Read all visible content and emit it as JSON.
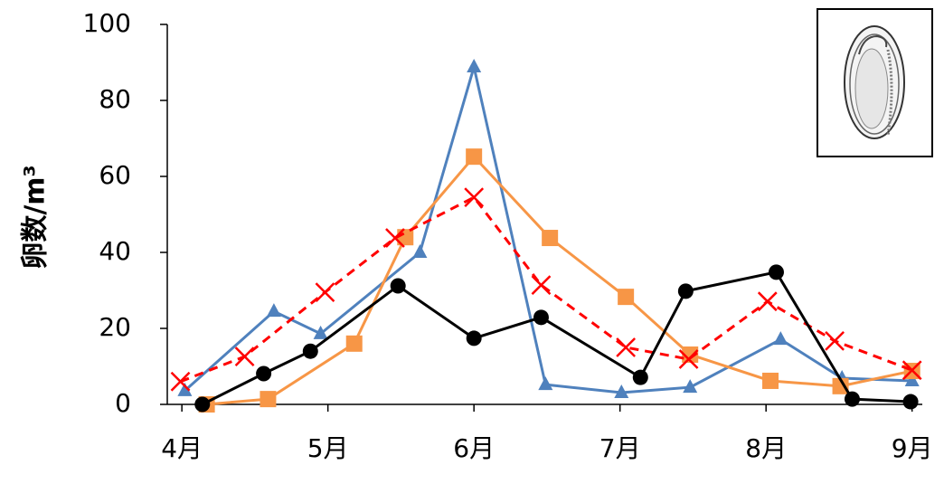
{
  "chart_data": {
    "type": "line",
    "ylabel": "卵数/m³",
    "xlim": [
      3.9,
      9.07
    ],
    "ylim": [
      0,
      100
    ],
    "xticks": [
      {
        "value": 4,
        "label": "4月"
      },
      {
        "value": 5,
        "label": "5月"
      },
      {
        "value": 6,
        "label": "6月"
      },
      {
        "value": 7,
        "label": "7月"
      },
      {
        "value": 8,
        "label": "8月"
      },
      {
        "value": 9,
        "label": "9月"
      }
    ],
    "yticks": [
      0,
      20,
      40,
      60,
      80,
      100
    ],
    "grid": false,
    "series": [
      {
        "color": "#4f81bd",
        "marker": "triangle",
        "dash": false,
        "x": [
          4.02,
          4.63,
          4.95,
          5.63,
          6.0,
          6.49,
          7.01,
          7.48,
          8.1,
          8.52,
          9.0
        ],
        "values": [
          3.6,
          24.5,
          18.6,
          40,
          88.8,
          5.2,
          3.1,
          4.5,
          17.1,
          6.9,
          6.2
        ]
      },
      {
        "color": "#f79646",
        "marker": "square",
        "dash": false,
        "x": [
          4.17,
          4.59,
          5.18,
          5.53,
          6.0,
          6.52,
          7.04,
          7.48,
          8.03,
          8.51,
          9.0
        ],
        "values": [
          0,
          1.4,
          16,
          44,
          65.2,
          43.8,
          28.3,
          13.1,
          6.2,
          4.8,
          8.8
        ]
      },
      {
        "color": "#ff0000",
        "marker": "cross",
        "dash": true,
        "x": [
          3.99,
          4.43,
          4.98,
          5.46,
          6.0,
          6.46,
          7.04,
          7.47,
          8.01,
          8.47,
          9.0
        ],
        "values": [
          6,
          12.6,
          29.5,
          43.8,
          54.5,
          31.4,
          15,
          11.9,
          27.1,
          16.7,
          9.0
        ]
      },
      {
        "color": "#000000",
        "marker": "circle",
        "dash": false,
        "x": [
          4.14,
          4.56,
          4.88,
          5.48,
          6.0,
          6.46,
          7.14,
          7.45,
          8.07,
          8.59,
          8.99
        ],
        "values": [
          0,
          8.1,
          14,
          31.2,
          17.4,
          22.9,
          7.1,
          29.8,
          34.8,
          1.4,
          0.7
        ]
      }
    ]
  }
}
